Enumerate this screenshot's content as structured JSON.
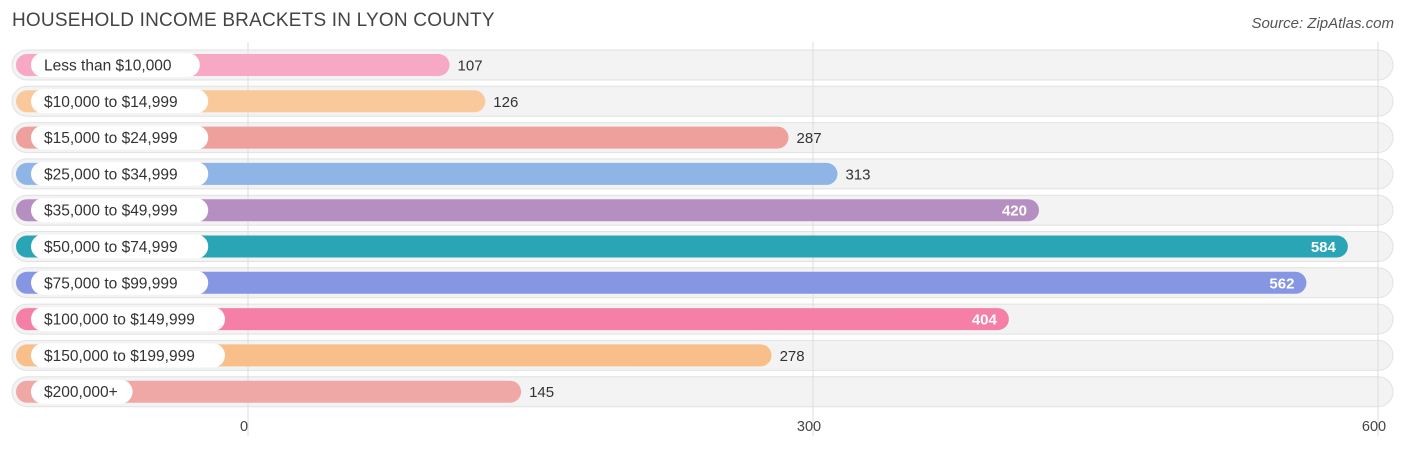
{
  "chart_data": {
    "type": "bar",
    "orientation": "horizontal",
    "title": "HOUSEHOLD INCOME BRACKETS IN LYON COUNTY",
    "source": "Source: ZipAtlas.com",
    "categories": [
      "Less than $10,000",
      "$10,000 to $14,999",
      "$15,000 to $24,999",
      "$25,000 to $34,999",
      "$35,000 to $49,999",
      "$50,000 to $74,999",
      "$75,000 to $99,999",
      "$100,000 to $149,999",
      "$150,000 to $199,999",
      "$200,000+"
    ],
    "values": [
      107,
      126,
      287,
      313,
      420,
      584,
      562,
      404,
      278,
      145
    ],
    "value_labels": [
      "107",
      "126",
      "287",
      "313",
      "420",
      "584",
      "562",
      "404",
      "278",
      "145"
    ],
    "colors": [
      "#f7a8c4",
      "#f9c99c",
      "#eea09c",
      "#8fb5e6",
      "#b68fc2",
      "#2aa5b6",
      "#8696e2",
      "#f57fa6",
      "#f8bf8a",
      "#f0a8a6"
    ],
    "xlim": [
      0,
      600
    ],
    "xticks": [
      0,
      300,
      600
    ],
    "xtick_labels": [
      "0",
      "300",
      "600"
    ],
    "grid": true,
    "xlabel": "",
    "ylabel": ""
  }
}
